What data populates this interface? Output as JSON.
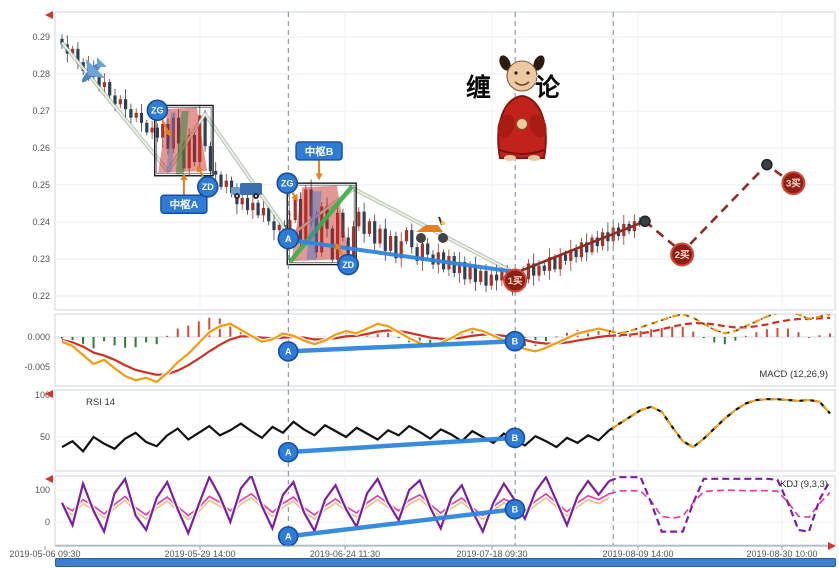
{
  "annotations": {
    "pivot_a_label": "中枢A",
    "pivot_b_label": "中枢B",
    "zg_label": "ZG",
    "zd_label": "ZD",
    "point_a_label": "A",
    "point_b_label": "B",
    "buy1_label": "1买",
    "buy2_label": "2买",
    "buy3_label": "3买",
    "chanlun_label": "缠论"
  },
  "panels": {
    "macd_label": "MACD (12,26,9)",
    "rsi_label": "RSI 14",
    "kdj_label": "KDJ (9,3,3)"
  },
  "axes": {
    "price_ticks": [
      "0.29",
      "0.28",
      "0.27",
      "0.26",
      "0.25",
      "0.24",
      "0.23",
      "0.22"
    ],
    "macd_ticks": [
      "0.000",
      "-0.005"
    ],
    "rsi_ticks": [
      "100",
      "50"
    ],
    "kdj_ticks": [
      "100",
      "0"
    ],
    "x_labels": [
      "2019-05-06 09:30",
      "2019-05-29 14:00",
      "2019-06-24 11:30",
      "2019-07-18 09:30",
      "2019-08-09 14:00",
      "2019-08-30 10:00"
    ]
  },
  "colors": {
    "up": "#a93226",
    "down": "#2e4053",
    "zigzag": "#e8f1e4",
    "trend_blue": "#2e86de",
    "projection_red": "#8c2d23",
    "dif": "#f39c12",
    "dea": "#d03020",
    "rsi_line": "#111111",
    "kdj_j": "#7d1fa0",
    "kdj_k": "#e23a9d",
    "hist_up": "#d04b3a",
    "hist_down": "#2e7d32",
    "marker_blue": "#2e7cd6",
    "marker_blue_border": "#164e9e",
    "buy_fill": "#8e1f14",
    "buy_border": "#d04b3a",
    "buy_text": "#ffd6cc",
    "arrow_orange": "#e8801a",
    "axis_pointer_red": "#d9342b",
    "slider_blue": "#3f7fd2",
    "plane": "#4a86c8",
    "truck": "#3a6fb0",
    "scooter": "#e67e22",
    "monk_robe": "#c0231b",
    "monk_skin": "#edc9a2"
  },
  "chart_data": {
    "type": "candlestick+indicators",
    "price": {
      "ylim": [
        0.22,
        0.295
      ],
      "closes": [
        0.288,
        0.2855,
        0.2868,
        0.2832,
        0.2808,
        0.2822,
        0.2792,
        0.2765,
        0.2778,
        0.2742,
        0.2718,
        0.2732,
        0.2705,
        0.2682,
        0.2695,
        0.2668,
        0.2642,
        0.2655,
        0.2628,
        0.2665,
        0.2598,
        0.2682,
        0.2612,
        0.2545,
        0.2635,
        0.2562,
        0.2688,
        0.2605,
        0.2538,
        0.2528,
        0.2495,
        0.2512,
        0.2478,
        0.2448,
        0.2465,
        0.2432,
        0.2452,
        0.2418,
        0.2438,
        0.2402,
        0.2378,
        0.2392,
        0.2362,
        0.2405,
        0.2462,
        0.2352,
        0.2488,
        0.2415,
        0.2318,
        0.2442,
        0.2382,
        0.2298,
        0.2425,
        0.2358,
        0.2292,
        0.2388,
        0.2428,
        0.2368,
        0.2402,
        0.2342,
        0.2382,
        0.2322,
        0.2362,
        0.2302,
        0.2348,
        0.2378,
        0.2332,
        0.2295,
        0.2342,
        0.2312,
        0.2285,
        0.2318,
        0.2272,
        0.2308,
        0.2262,
        0.2292,
        0.2245,
        0.2282,
        0.2238,
        0.2268,
        0.2228,
        0.2258,
        0.2242,
        0.2272,
        0.2235,
        0.2225,
        0.2262,
        0.2245,
        0.2288,
        0.2255,
        0.2282,
        0.2268,
        0.2305,
        0.2272,
        0.2312,
        0.2295,
        0.2325,
        0.2305,
        0.2345,
        0.2318,
        0.2358,
        0.2335,
        0.2372,
        0.2348,
        0.2385,
        0.2362,
        0.2395,
        0.2375,
        0.2402,
        0.2398
      ],
      "wick_pattern": [
        0.0012,
        0.0024,
        0.0008,
        0.0018,
        0.0011,
        0.0027,
        0.0015
      ],
      "zigzag": [
        [
          0,
          0.2885
        ],
        [
          20,
          0.2538
        ],
        [
          27,
          0.2692
        ],
        [
          43,
          0.2362
        ],
        [
          55,
          0.249
        ],
        [
          85.5,
          0.2262
        ]
      ],
      "trend_line": [
        [
          42.7,
          0.2352
        ],
        [
          85.5,
          0.2265
        ]
      ],
      "projection_solid": [
        [
          85.5,
          0.2262
        ],
        [
          110,
          0.2402
        ]
      ],
      "projection_dashed": [
        [
          110,
          0.2402
        ],
        [
          117,
          0.2318
        ],
        [
          133,
          0.2555
        ],
        [
          138,
          0.2502
        ]
      ],
      "projection_dots": [
        [
          110,
          0.2402
        ],
        [
          133,
          0.2555
        ]
      ],
      "pivots": [
        {
          "i0": 17.5,
          "i1": 28.5,
          "top": 0.2715,
          "bottom": 0.2525
        },
        {
          "i0": 42.5,
          "i1": 55.5,
          "top": 0.2505,
          "bottom": 0.2285
        }
      ],
      "markers": [
        {
          "label": "ZG",
          "style": "blue",
          "i": 18,
          "p": 0.2702,
          "to": {
            "i": 20.5,
            "p": 0.263
          }
        },
        {
          "label": "ZD",
          "style": "blue",
          "i": 27.5,
          "p": 0.2495,
          "to": {
            "i": 25.5,
            "p": 0.2555
          }
        },
        {
          "label": "ZG",
          "style": "blue",
          "i": 42.5,
          "p": 0.2505,
          "to": {
            "i": 44.5,
            "p": 0.2455
          }
        },
        {
          "label": "ZD",
          "style": "blue",
          "i": 54,
          "p": 0.2285,
          "to": {
            "i": 51.5,
            "p": 0.2345
          }
        },
        {
          "label": "A",
          "style": "blue",
          "i": 42.7,
          "p": 0.2355
        },
        {
          "label": "1买",
          "style": "buy",
          "i": 85.5,
          "p": 0.2242
        },
        {
          "label": "2买",
          "style": "buy",
          "i": 117,
          "p": 0.2312
        },
        {
          "label": "3买",
          "style": "buy",
          "i": 138,
          "p": 0.2505
        }
      ],
      "pivot_labels": [
        {
          "label": "中枢A",
          "i": 23,
          "p": 0.2448,
          "to": {
            "i": 23,
            "p": 0.2532
          }
        },
        {
          "label": "中枢B",
          "i": 48.5,
          "p": 0.2592,
          "to": {
            "i": 48.5,
            "p": 0.2512
          }
        }
      ],
      "guide_lines_i": [
        42.7,
        85.5,
        104
      ]
    },
    "macd": {
      "solid_until": 52,
      "dif": [
        -0.0008,
        -0.0015,
        -0.003,
        -0.0045,
        -0.0038,
        -0.0052,
        -0.0065,
        -0.0072,
        -0.0068,
        -0.0075,
        -0.006,
        -0.0042,
        -0.0028,
        -0.001,
        0.0008,
        0.0018,
        0.0022,
        0.0012,
        0.0002,
        -0.0008,
        -0.0004,
        0.0006,
        0.0002,
        -0.0006,
        -0.0012,
        -0.0006,
        0.0004,
        0.001,
        0.0006,
        0.0014,
        0.0022,
        0.0018,
        0.0008,
        -0.0002,
        -0.001,
        -0.0016,
        -0.001,
        -0.0002,
        0.0008,
        0.0014,
        0.001,
        0.0002,
        -0.0006,
        -0.0014,
        -0.002,
        -0.0024,
        -0.0018,
        -0.001,
        -0.0002,
        0.0006,
        0.001,
        0.0014,
        0.001,
        0.0006,
        0.001,
        0.0016,
        0.0022,
        0.0028,
        0.0034,
        0.0038,
        0.0032,
        0.0022,
        0.0012,
        0.0006,
        0.001,
        0.0018,
        0.0026,
        0.0034,
        0.004,
        0.0042,
        0.0038,
        0.003,
        0.0034,
        0.0038
      ],
      "dea": [
        -0.0005,
        -0.0009,
        -0.0016,
        -0.0026,
        -0.0031,
        -0.0038,
        -0.0047,
        -0.0055,
        -0.0059,
        -0.0063,
        -0.0062,
        -0.0056,
        -0.0047,
        -0.0036,
        -0.0024,
        -0.0013,
        -0.0004,
        0.0001,
        0.0001,
        -0.0001,
        -0.0002,
        -0.0001,
        0.0,
        -0.0001,
        -0.0004,
        -0.0004,
        -0.0002,
        0.0001,
        0.0002,
        0.0005,
        0.0009,
        0.0011,
        0.001,
        0.0007,
        0.0003,
        -0.0001,
        -0.0003,
        -0.0003,
        -0.0001,
        0.0002,
        0.0004,
        0.0004,
        0.0002,
        -0.0001,
        -0.0005,
        -0.0009,
        -0.0011,
        -0.0011,
        -0.0009,
        -0.0006,
        -0.0003,
        0.0,
        0.0002,
        0.0003,
        0.0004,
        0.0006,
        0.0009,
        0.0013,
        0.0017,
        0.0021,
        0.0023,
        0.0023,
        0.0021,
        0.0018,
        0.0016,
        0.0016,
        0.0018,
        0.0021,
        0.0025,
        0.0028,
        0.003,
        0.003,
        0.0031,
        0.0032
      ]
    },
    "rsi": {
      "solid_until": 52,
      "values": [
        38,
        45,
        33,
        50,
        42,
        36,
        48,
        55,
        44,
        39,
        52,
        60,
        47,
        55,
        63,
        52,
        58,
        66,
        57,
        49,
        62,
        55,
        68,
        59,
        52,
        64,
        57,
        50,
        61,
        54,
        47,
        58,
        52,
        63,
        56,
        48,
        59,
        53,
        45,
        57,
        50,
        43,
        54,
        47,
        40,
        51,
        45,
        38,
        49,
        43,
        52,
        46,
        58,
        66,
        74,
        82,
        86,
        80,
        62,
        45,
        38,
        48,
        60,
        72,
        82,
        90,
        94,
        95,
        95,
        94,
        93,
        94,
        92,
        78
      ]
    },
    "kdj": {
      "solid_until": 52,
      "k": [
        55,
        35,
        70,
        50,
        25,
        55,
        80,
        45,
        22,
        55,
        78,
        48,
        20,
        45,
        80,
        62,
        35,
        68,
        88,
        58,
        30,
        58,
        78,
        45,
        22,
        50,
        72,
        48,
        28,
        60,
        82,
        58,
        35,
        68,
        85,
        55,
        28,
        55,
        75,
        45,
        20,
        48,
        72,
        58,
        35,
        65,
        88,
        60,
        32,
        60,
        82,
        70,
        88,
        97,
        98,
        97,
        65,
        18,
        12,
        18,
        60,
        95,
        98,
        99,
        99,
        98,
        98,
        98,
        96,
        62,
        18,
        15,
        58,
        92
      ],
      "j": [
        60,
        -10,
        120,
        35,
        -30,
        90,
        135,
        20,
        -25,
        75,
        125,
        40,
        -35,
        55,
        140,
        80,
        0,
        105,
        145,
        50,
        -20,
        85,
        125,
        30,
        -28,
        70,
        115,
        40,
        -15,
        90,
        135,
        60,
        5,
        100,
        130,
        45,
        -20,
        75,
        115,
        35,
        -30,
        60,
        120,
        70,
        10,
        95,
        140,
        65,
        -10,
        80,
        128,
        85,
        128,
        140,
        140,
        140,
        60,
        -30,
        -30,
        -30,
        60,
        135,
        135,
        135,
        135,
        135,
        135,
        135,
        132,
        60,
        -25,
        -30,
        70,
        130
      ]
    },
    "indicator_markers": {
      "macd": {
        "a": [
          21.5,
          -0.0024
        ],
        "b": [
          43.05,
          -0.0007
        ]
      },
      "rsi": {
        "a": [
          21.5,
          32
        ],
        "b": [
          43.05,
          49
        ]
      },
      "kdj": {
        "a": [
          21.5,
          -45
        ],
        "b": [
          43.05,
          40
        ]
      }
    }
  }
}
